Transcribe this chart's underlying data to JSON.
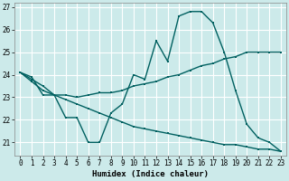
{
  "xlabel": "Humidex (Indice chaleur)",
  "bg_color": "#cceaea",
  "grid_color": "#ffffff",
  "line_color": "#006060",
  "xlim": [
    -0.5,
    23.5
  ],
  "ylim": [
    20.4,
    27.2
  ],
  "yticks": [
    21,
    22,
    23,
    24,
    25,
    26,
    27
  ],
  "xticks": [
    0,
    1,
    2,
    3,
    4,
    5,
    6,
    7,
    8,
    9,
    10,
    11,
    12,
    13,
    14,
    15,
    16,
    17,
    18,
    19,
    20,
    21,
    22,
    23
  ],
  "line1_y": [
    24.1,
    23.9,
    23.1,
    23.1,
    22.1,
    22.1,
    21.0,
    21.0,
    22.3,
    22.7,
    24.0,
    23.8,
    25.5,
    24.6,
    26.6,
    26.8,
    26.8,
    26.3,
    25.0,
    23.3,
    21.8,
    21.2,
    21.0,
    20.6
  ],
  "line2_y": [
    24.1,
    23.7,
    23.3,
    23.1,
    23.1,
    23.0,
    23.1,
    23.2,
    23.2,
    23.3,
    23.5,
    23.6,
    23.7,
    23.9,
    24.0,
    24.2,
    24.4,
    24.5,
    24.7,
    24.8,
    25.0,
    25.0,
    25.0,
    25.0
  ],
  "line3_y": [
    24.1,
    23.8,
    23.5,
    23.1,
    22.9,
    22.7,
    22.5,
    22.3,
    22.1,
    21.9,
    21.7,
    21.6,
    21.5,
    21.4,
    21.3,
    21.2,
    21.1,
    21.0,
    20.9,
    20.9,
    20.8,
    20.7,
    20.7,
    20.6
  ]
}
